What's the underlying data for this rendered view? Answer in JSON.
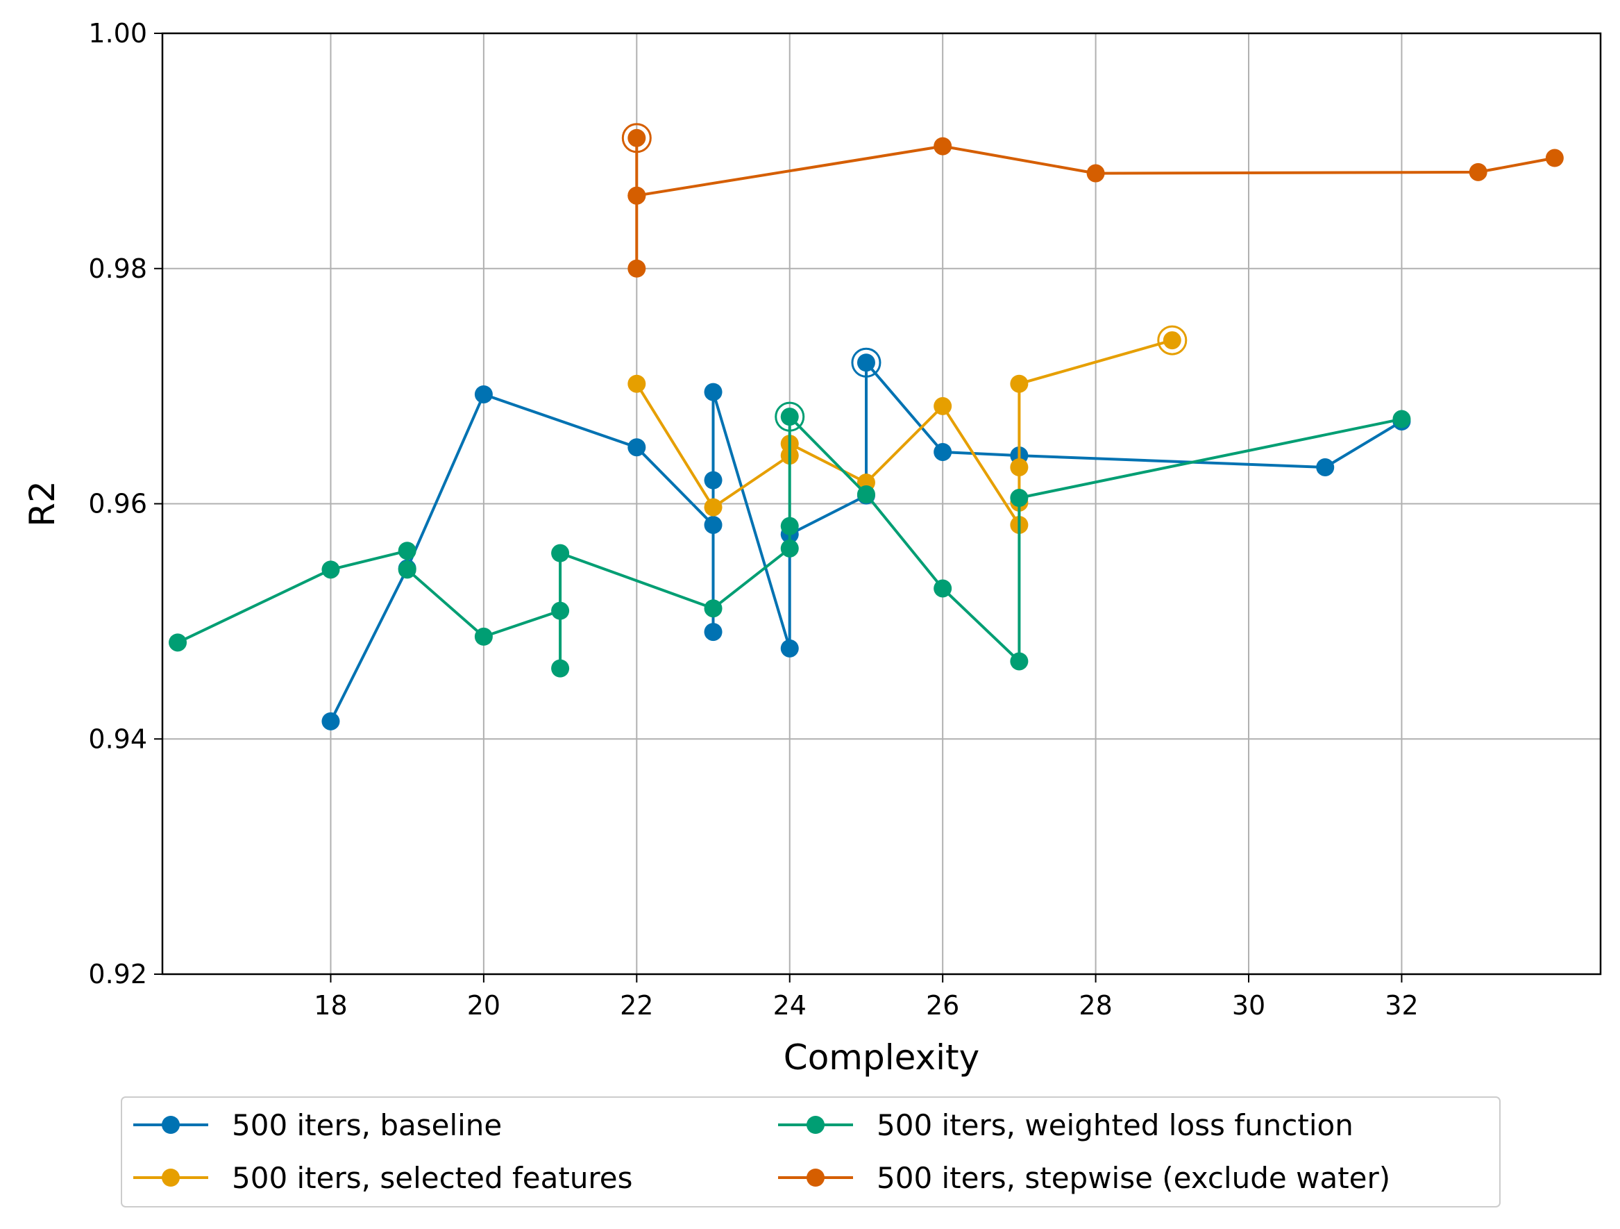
{
  "chart_data": {
    "type": "line",
    "title": "",
    "xlabel": "Complexity",
    "ylabel": "R2",
    "xlim": [
      15.8,
      34.6
    ],
    "ylim": [
      0.92,
      1.0
    ],
    "xticks": [
      "18",
      "20",
      "22",
      "24",
      "26",
      "28",
      "30",
      "32"
    ],
    "yticks": [
      "0.92",
      "0.94",
      "0.96",
      "0.98",
      "1.00"
    ],
    "grid": true,
    "legend_position": "below plot, two columns",
    "series": [
      {
        "name": "500 iters, baseline",
        "color": "#0072B2",
        "points": [
          [
            18,
            0.9415
          ],
          [
            19,
            0.9545
          ],
          [
            20,
            0.9693
          ],
          [
            22,
            0.9648
          ],
          [
            23,
            0.9582
          ],
          [
            23,
            0.9491
          ],
          [
            23,
            0.962
          ],
          [
            23,
            0.9695
          ],
          [
            24,
            0.9477
          ],
          [
            24,
            0.9574
          ],
          [
            25,
            0.9607
          ],
          [
            25,
            0.972
          ],
          [
            26,
            0.9644
          ],
          [
            27,
            0.9641
          ],
          [
            31,
            0.9631
          ],
          [
            32,
            0.967
          ]
        ],
        "highlight": [
          25,
          0.972
        ]
      },
      {
        "name": "500 iters, selected features",
        "color": "#E69F00",
        "points": [
          [
            22,
            0.9702
          ],
          [
            23,
            0.9597
          ],
          [
            24,
            0.9641
          ],
          [
            24,
            0.9651
          ],
          [
            25,
            0.9618
          ],
          [
            26,
            0.9683
          ],
          [
            27,
            0.9582
          ],
          [
            27,
            0.9601
          ],
          [
            27,
            0.9631
          ],
          [
            27,
            0.9702
          ],
          [
            29,
            0.9739
          ]
        ],
        "highlight": [
          29,
          0.9739
        ]
      },
      {
        "name": "500 iters, weighted loss function",
        "color": "#009E73",
        "points": [
          [
            16,
            0.9482
          ],
          [
            18,
            0.9544
          ],
          [
            19,
            0.956
          ],
          [
            19,
            0.9544
          ],
          [
            20,
            0.9487
          ],
          [
            21,
            0.9509
          ],
          [
            21,
            0.946
          ],
          [
            21,
            0.9558
          ],
          [
            23,
            0.9511
          ],
          [
            24,
            0.9562
          ],
          [
            24,
            0.9581
          ],
          [
            24,
            0.9674
          ],
          [
            25,
            0.9608
          ],
          [
            26,
            0.9528
          ],
          [
            27,
            0.9466
          ],
          [
            27,
            0.9605
          ],
          [
            32,
            0.9672
          ]
        ],
        "highlight": [
          24,
          0.9674
        ]
      },
      {
        "name": "500 iters, stepwise (exclude water)",
        "color": "#D55E00",
        "points": [
          [
            22,
            0.98
          ],
          [
            22,
            0.9862
          ],
          [
            22,
            0.9911
          ],
          [
            22,
            0.9862
          ],
          [
            26,
            0.9904
          ],
          [
            28,
            0.9881
          ],
          [
            33,
            0.9882
          ],
          [
            34,
            0.9894
          ]
        ],
        "highlight": [
          22,
          0.9911
        ]
      }
    ]
  }
}
